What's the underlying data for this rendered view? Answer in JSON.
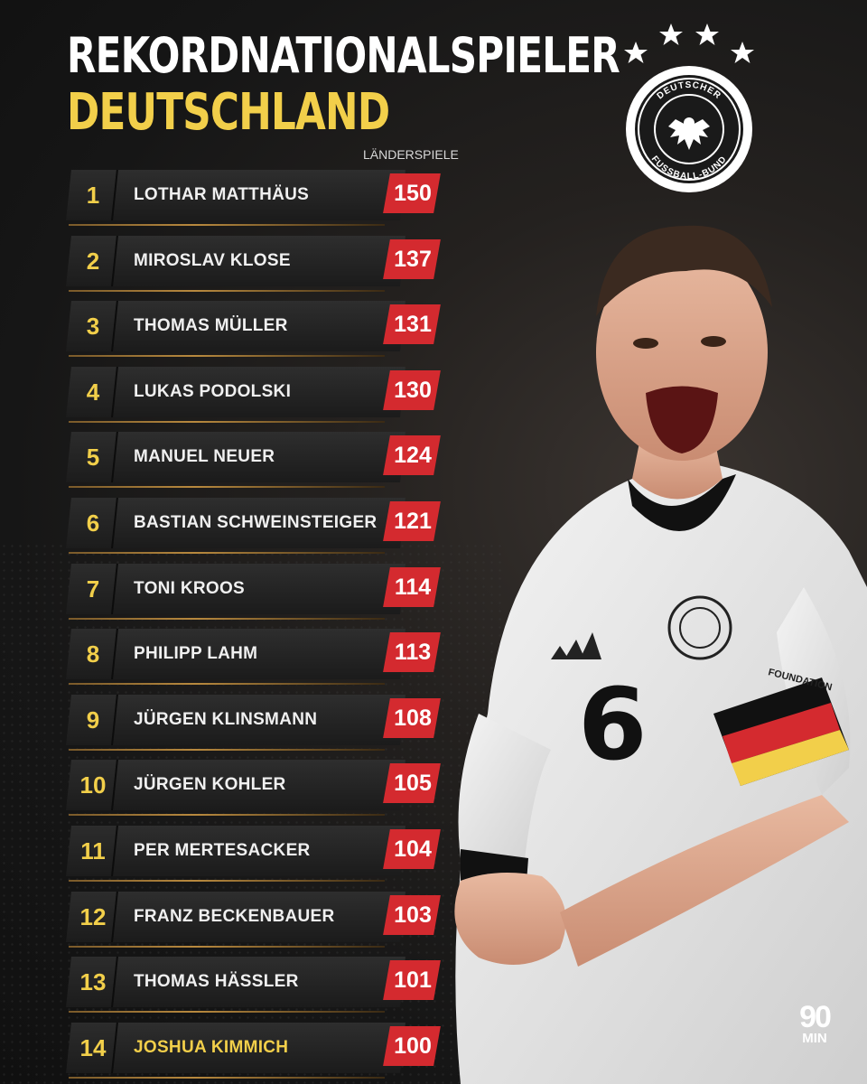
{
  "header": {
    "title_line1": "REKORDNATIONALSPIELER",
    "title_line2": "DEUTSCHLAND",
    "column_label": "LÄNDERSPIELE"
  },
  "crest": {
    "text_top": "DEUTSCHER",
    "text_bottom": "FUSSBALL-BUND",
    "stars": 4
  },
  "rows": [
    {
      "rank": "1",
      "name": "LOTHAR MATTHÄUS",
      "caps": "150"
    },
    {
      "rank": "2",
      "name": "MIROSLAV KLOSE",
      "caps": "137"
    },
    {
      "rank": "3",
      "name": "THOMAS MÜLLER",
      "caps": "131"
    },
    {
      "rank": "4",
      "name": "LUKAS PODOLSKI",
      "caps": "130"
    },
    {
      "rank": "5",
      "name": "MANUEL NEUER",
      "caps": "124"
    },
    {
      "rank": "6",
      "name": "BASTIAN SCHWEINSTEIGER",
      "caps": "121"
    },
    {
      "rank": "7",
      "name": "TONI KROOS",
      "caps": "114"
    },
    {
      "rank": "8",
      "name": "PHILIPP LAHM",
      "caps": "113"
    },
    {
      "rank": "9",
      "name": "JÜRGEN KLINSMANN",
      "caps": "108"
    },
    {
      "rank": "10",
      "name": "JÜRGEN KOHLER",
      "caps": "105"
    },
    {
      "rank": "11",
      "name": "PER MERTESACKER",
      "caps": "104"
    },
    {
      "rank": "12",
      "name": "FRANZ BECKENBAUER",
      "caps": "103"
    },
    {
      "rank": "13",
      "name": "THOMAS HÄSSLER",
      "caps": "101"
    },
    {
      "rank": "14",
      "name": "JOSHUA KIMMICH",
      "caps": "100",
      "highlight": true
    }
  ],
  "player": {
    "shirt_number": "6",
    "armband_text": "FOUNDATION"
  },
  "brand": {
    "logo_big": "90",
    "logo_small": "MIN"
  },
  "colors": {
    "accent_yellow": "#f2cf4a",
    "value_red": "#d42a2f",
    "background": "#161616"
  }
}
